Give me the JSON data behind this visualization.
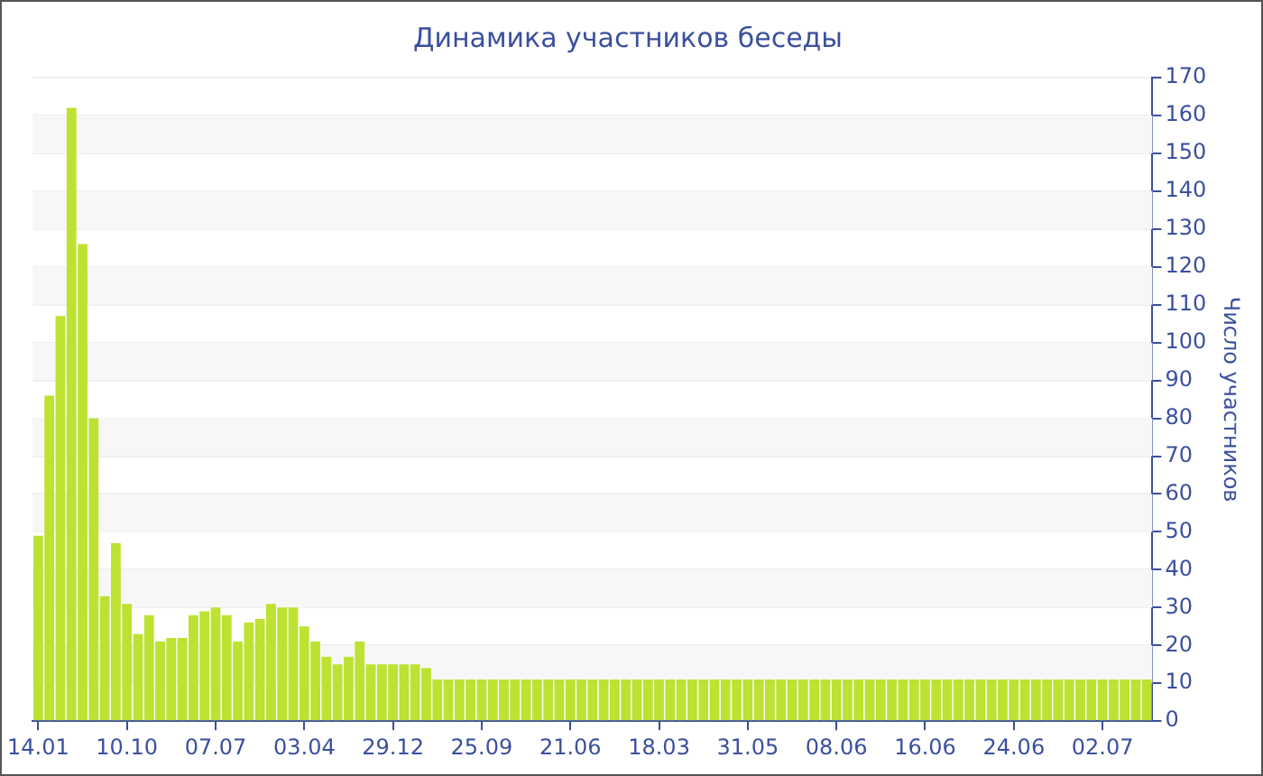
{
  "chart_data": {
    "type": "bar",
    "title": "Динамика участников беседы",
    "ylabel": "Число участников",
    "categories": [
      "14.01",
      null,
      null,
      null,
      null,
      null,
      null,
      null,
      "10.10",
      null,
      null,
      null,
      null,
      null,
      null,
      null,
      "07.07",
      null,
      null,
      null,
      null,
      null,
      null,
      null,
      "03.04",
      null,
      null,
      null,
      null,
      null,
      null,
      null,
      "29.12",
      null,
      null,
      null,
      null,
      null,
      null,
      null,
      "25.09",
      null,
      null,
      null,
      null,
      null,
      null,
      null,
      "21.06",
      null,
      null,
      null,
      null,
      null,
      null,
      null,
      "18.03",
      null,
      null,
      null,
      null,
      null,
      null,
      null,
      "31.05",
      null,
      null,
      null,
      null,
      null,
      null,
      null,
      "08.06",
      null,
      null,
      null,
      null,
      null,
      null,
      null,
      "16.06",
      null,
      null,
      null,
      null,
      null,
      null,
      null,
      "24.06",
      null,
      null,
      null,
      null,
      null,
      null,
      null,
      "02.07",
      null,
      null,
      null,
      null
    ],
    "values": [
      49,
      86,
      107,
      162,
      126,
      80,
      33,
      47,
      31,
      23,
      28,
      21,
      22,
      22,
      28,
      29,
      30,
      28,
      21,
      26,
      27,
      31,
      30,
      30,
      25,
      21,
      17,
      15,
      17,
      21,
      15,
      15,
      15,
      15,
      15,
      14,
      11,
      11,
      11,
      11,
      11,
      11,
      11,
      11,
      11,
      11,
      11,
      11,
      11,
      11,
      11,
      11,
      11,
      11,
      11,
      11,
      11,
      11,
      11,
      11,
      11,
      11,
      11,
      11,
      11,
      11,
      11,
      11,
      11,
      11,
      11,
      11,
      11,
      11,
      11,
      11,
      11,
      11,
      11,
      11,
      11,
      11,
      11,
      11,
      11,
      11,
      11,
      11,
      11,
      11,
      11,
      11,
      11,
      11,
      11,
      11,
      11,
      11,
      11,
      11,
      11
    ],
    "color": "#bde232",
    "ylim": [
      0,
      170
    ],
    "yticks": [
      0,
      10,
      20,
      30,
      40,
      50,
      60,
      70,
      80,
      90,
      100,
      110,
      120,
      130,
      140,
      150,
      160,
      170
    ],
    "grid": true,
    "legend": false
  }
}
